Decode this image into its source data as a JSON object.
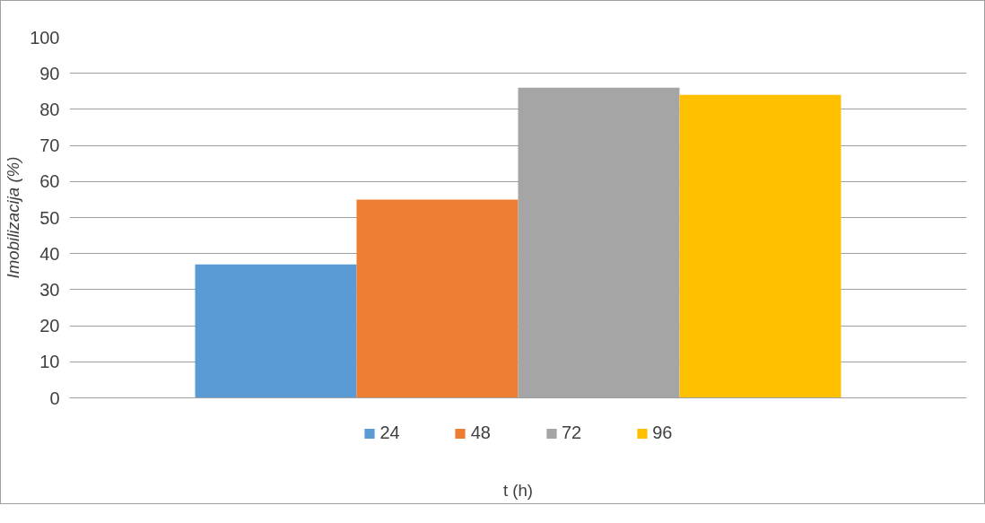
{
  "chart_data": {
    "type": "bar",
    "categories": [
      null
    ],
    "series": [
      {
        "name": "24",
        "color": "#5b9bd5",
        "values": [
          37
        ]
      },
      {
        "name": "48",
        "color": "#ed7d31",
        "values": [
          55
        ]
      },
      {
        "name": "72",
        "color": "#a5a5a5",
        "values": [
          86
        ]
      },
      {
        "name": "96",
        "color": "#ffc000",
        "values": [
          84
        ]
      }
    ],
    "xlabel": "t (h)",
    "ylabel": "Imobilizacija (%)",
    "ylim": [
      0,
      100
    ],
    "yticks": [
      0,
      10,
      20,
      30,
      40,
      50,
      60,
      70,
      80,
      90,
      100
    ],
    "grid": "y",
    "legend": "bottom"
  }
}
